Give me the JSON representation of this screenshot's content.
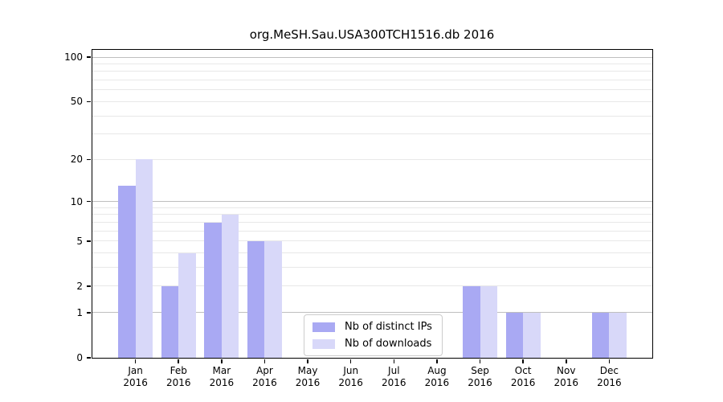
{
  "title": "org.MeSH.Sau.USA300TCH1516.db 2016",
  "legend": {
    "items": [
      {
        "label": "Nb of distinct IPs",
        "color": "#a9a9f3"
      },
      {
        "label": "Nb of downloads",
        "color": "#d8d8f9"
      }
    ]
  },
  "colors": {
    "bar_distinct_ips": "#a9a9f3",
    "bar_downloads": "#d8d8f9",
    "major_gridline": "#bfbfbf",
    "minor_gridline": "#e8e8e8",
    "spine": "#000000"
  },
  "chart_data": {
    "type": "bar",
    "title": "org.MeSH.Sau.USA300TCH1516.db 2016",
    "categories": [
      "Jan",
      "Feb",
      "Mar",
      "Apr",
      "May",
      "Jun",
      "Jul",
      "Aug",
      "Sep",
      "Oct",
      "Nov",
      "Dec"
    ],
    "year": "2016",
    "series": [
      {
        "name": "Nb of distinct IPs",
        "color": "#a9a9f3",
        "values": [
          13,
          2,
          7,
          5,
          0,
          0,
          0,
          0,
          2,
          1,
          0,
          1
        ]
      },
      {
        "name": "Nb of downloads",
        "color": "#d8d8f9",
        "values": [
          20,
          4,
          8,
          5,
          0,
          0,
          0,
          0,
          2,
          1,
          0,
          1
        ]
      }
    ],
    "xlabel": "",
    "ylabel": "",
    "y_scale": "log1p",
    "ylim": [
      0,
      112
    ],
    "y_ticks": [
      0,
      1,
      2,
      5,
      10,
      20,
      50,
      100
    ],
    "y_major_gridlines": [
      1,
      10,
      100
    ],
    "y_minor_gridlines": [
      2,
      3,
      4,
      5,
      6,
      7,
      8,
      9,
      20,
      30,
      40,
      50,
      60,
      70,
      80,
      90
    ],
    "grid": true,
    "legend_position": "lower center"
  }
}
